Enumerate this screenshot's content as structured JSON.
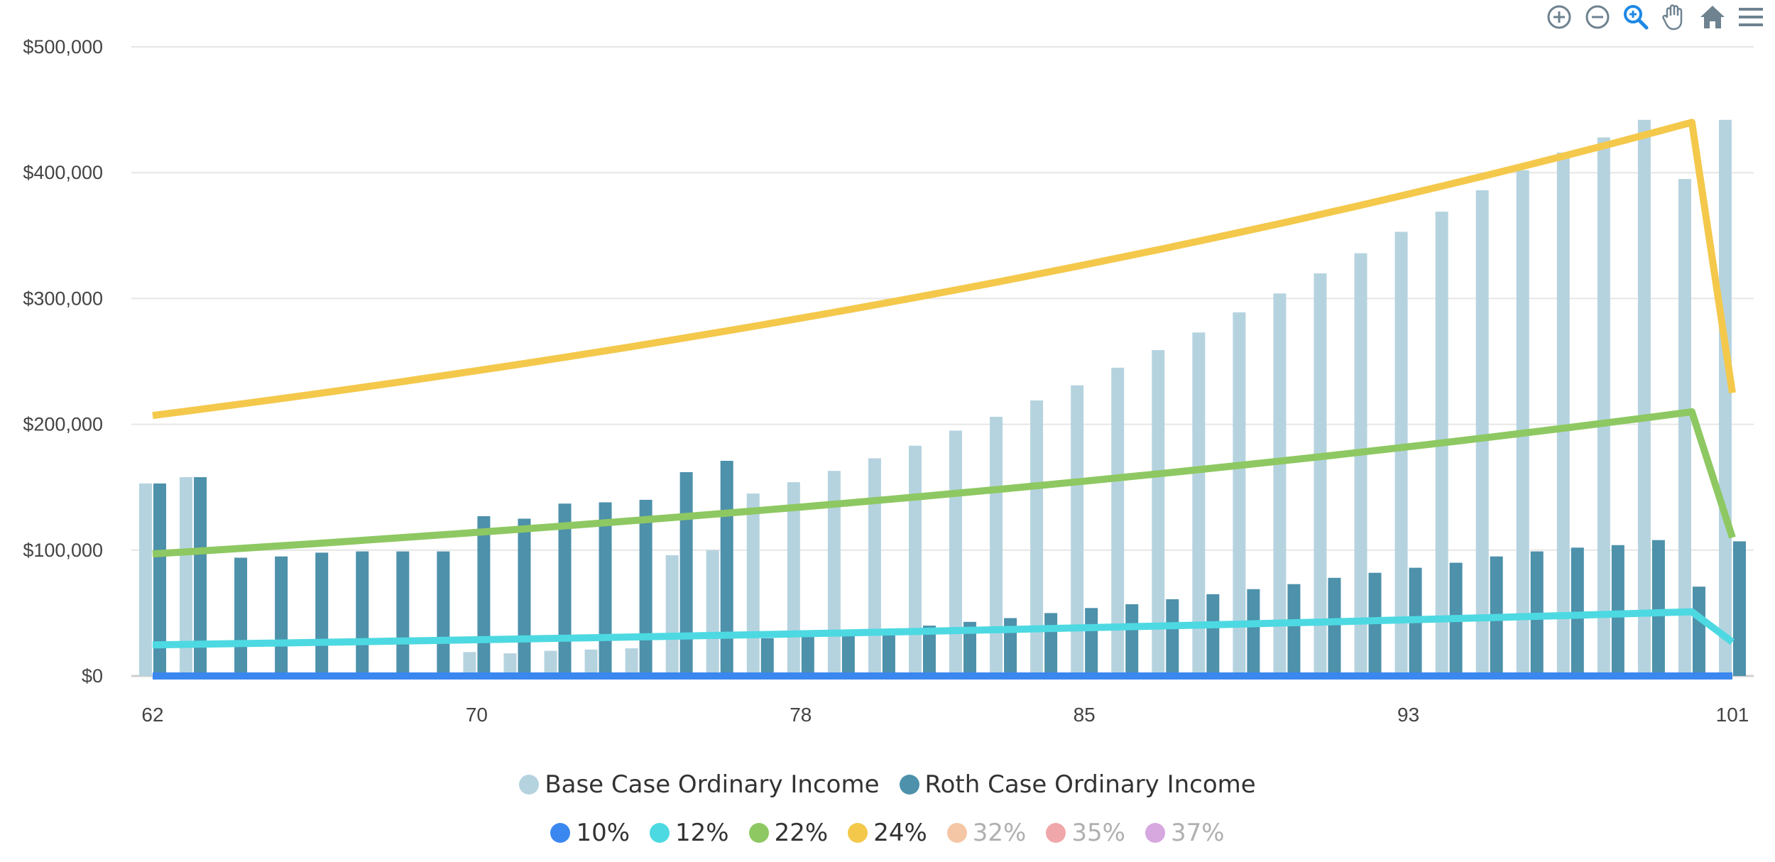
{
  "chart_data": {
    "type": "bar+line",
    "title": "",
    "xlabel": "",
    "ylabel": "",
    "ylim": [
      0,
      500000
    ],
    "y_ticks": [
      "$0",
      "$100,000",
      "$200,000",
      "$300,000",
      "$400,000",
      "$500,000"
    ],
    "x_ticks": [
      "62",
      "70",
      "78",
      "85",
      "93",
      "101"
    ],
    "ages": [
      62,
      63,
      64,
      65,
      66,
      67,
      68,
      69,
      70,
      71,
      72,
      73,
      74,
      75,
      76,
      77,
      78,
      79,
      80,
      81,
      82,
      83,
      84,
      85,
      86,
      87,
      88,
      89,
      90,
      91,
      92,
      93,
      94,
      95,
      96,
      97,
      98,
      99,
      100,
      101
    ],
    "bar_series": [
      {
        "name": "Base Case Ordinary Income",
        "color": "#b5d3df",
        "values": [
          153000,
          158000,
          0,
          0,
          0,
          0,
          0,
          0,
          19000,
          18000,
          20000,
          21000,
          22000,
          96000,
          100000,
          145000,
          154000,
          163000,
          173000,
          183000,
          195000,
          206000,
          219000,
          231000,
          245000,
          259000,
          273000,
          289000,
          304000,
          320000,
          336000,
          353000,
          369000,
          386000,
          402000,
          416000,
          428000,
          442000,
          395000,
          442000
        ]
      },
      {
        "name": "Roth Case Ordinary Income",
        "color": "#4d91ab",
        "values": [
          153000,
          158000,
          94000,
          95000,
          98000,
          99000,
          99000,
          99000,
          127000,
          125000,
          137000,
          138000,
          140000,
          162000,
          171000,
          30000,
          31000,
          33000,
          37000,
          40000,
          43000,
          46000,
          50000,
          54000,
          57000,
          61000,
          65000,
          69000,
          73000,
          78000,
          82000,
          86000,
          90000,
          95000,
          99000,
          102000,
          104000,
          108000,
          71000,
          107000
        ]
      }
    ],
    "line_series": [
      {
        "name": "10%",
        "color": "#3b87f0",
        "start": 0,
        "peak": 0,
        "end": 0
      },
      {
        "name": "12%",
        "color": "#4dd9e2",
        "start": 24700,
        "peak": 51000,
        "end": 27000
      },
      {
        "name": "22%",
        "color": "#8ec862",
        "start": 97000,
        "peak": 210000,
        "end": 110000
      },
      {
        "name": "24%",
        "color": "#f4c84b",
        "start": 207000,
        "peak": 440000,
        "end": 225000
      }
    ],
    "legend_bars": [
      {
        "name": "Base Case Ordinary Income",
        "color": "#b5d3df",
        "active": true
      },
      {
        "name": "Roth Case Ordinary Income",
        "color": "#4d91ab",
        "active": true
      }
    ],
    "legend_lines": [
      {
        "name": "10%",
        "color": "#3b87f0",
        "active": true
      },
      {
        "name": "12%",
        "color": "#4dd9e2",
        "active": true
      },
      {
        "name": "22%",
        "color": "#8ec862",
        "active": true
      },
      {
        "name": "24%",
        "color": "#f4c84b",
        "active": true
      },
      {
        "name": "32%",
        "color": "#f5c6a5",
        "active": false
      },
      {
        "name": "35%",
        "color": "#f0a7aa",
        "active": false
      },
      {
        "name": "37%",
        "color": "#d7a7e0",
        "active": false
      }
    ]
  },
  "toolbar": [
    {
      "icon": "zoom-in-icon"
    },
    {
      "icon": "zoom-out-icon"
    },
    {
      "icon": "selection-zoom-icon"
    },
    {
      "icon": "pan-hand-icon"
    },
    {
      "icon": "reset-home-icon"
    },
    {
      "icon": "menu-icon"
    }
  ]
}
